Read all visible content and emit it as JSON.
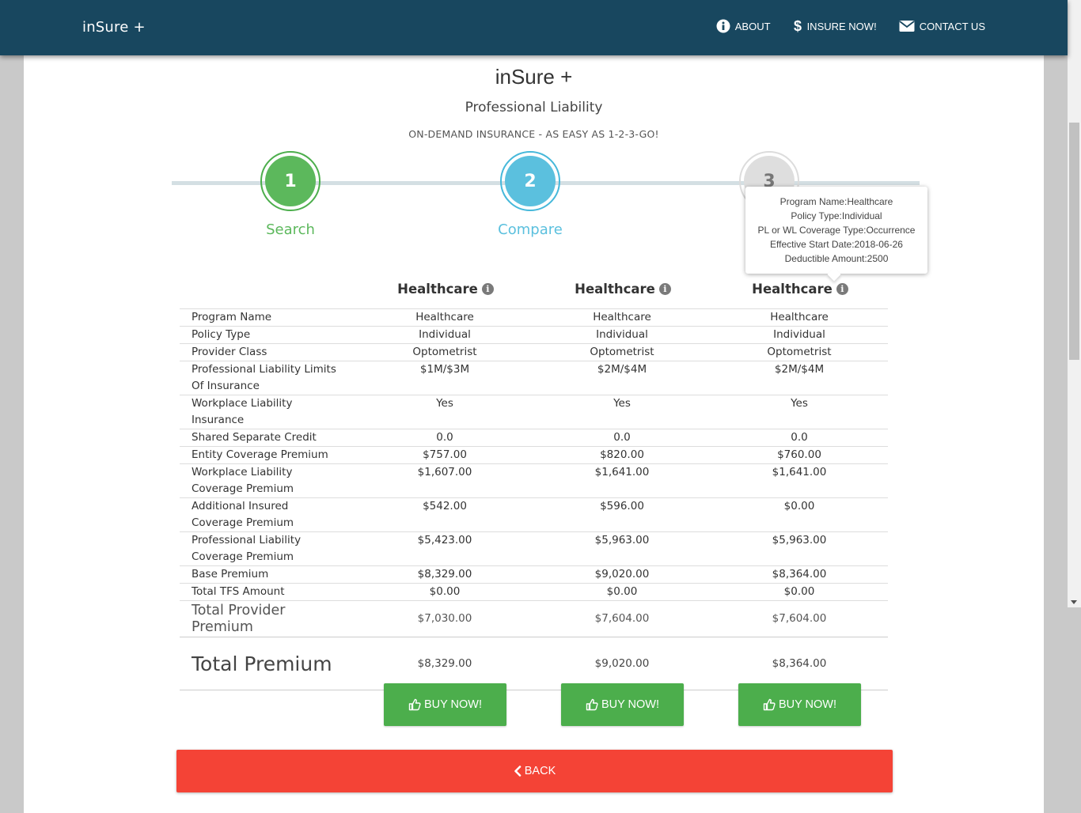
{
  "nav": {
    "brand": "inSure +",
    "links": [
      {
        "label": "ABOUT",
        "icon": "info-circle-icon"
      },
      {
        "label": "INSURE NOW!",
        "icon": "dollar-icon"
      },
      {
        "label": "CONTACT US",
        "icon": "envelope-icon"
      }
    ]
  },
  "header": {
    "title": "inSure +",
    "subtitle": "Professional Liability",
    "tagline": "ON-DEMAND INSURANCE - AS EASY AS 1-2-3-GO!"
  },
  "steps": [
    {
      "number": "1",
      "label": "Search",
      "color": "#5cb85c"
    },
    {
      "number": "2",
      "label": "Compare",
      "color": "#5bc0de"
    },
    {
      "number": "3",
      "label": "",
      "color": "#dedede"
    }
  ],
  "tooltip": {
    "lines": [
      "Program Name:Healthcare",
      "Policy Type:Individual",
      "PL or WL Coverage Type:Occurrence",
      "Effective Start Date:2018-06-26",
      "Deductible Amount:2500"
    ]
  },
  "columns": [
    "Healthcare",
    "Healthcare",
    "Healthcare"
  ],
  "rows": [
    {
      "label": "Program Name",
      "values": [
        "Healthcare",
        "Healthcare",
        "Healthcare"
      ]
    },
    {
      "label": "Policy Type",
      "values": [
        "Individual",
        "Individual",
        "Individual"
      ]
    },
    {
      "label": "Provider Class",
      "values": [
        "Optometrist",
        "Optometrist",
        "Optometrist"
      ]
    },
    {
      "label": "Professional Liability Limits Of Insurance",
      "values": [
        "$1M/$3M",
        "$2M/$4M",
        "$2M/$4M"
      ]
    },
    {
      "label": "Workplace Liability Insurance",
      "values": [
        "Yes",
        "Yes",
        "Yes"
      ]
    },
    {
      "label": "Shared Separate Credit",
      "values": [
        "0.0",
        "0.0",
        "0.0"
      ]
    },
    {
      "label": "Entity Coverage Premium",
      "values": [
        "$757.00",
        "$820.00",
        "$760.00"
      ]
    },
    {
      "label": "Workplace Liability Coverage Premium",
      "values": [
        "$1,607.00",
        "$1,641.00",
        "$1,641.00"
      ]
    },
    {
      "label": "Additional Insured Coverage Premium",
      "values": [
        "$542.00",
        "$596.00",
        "$0.00"
      ]
    },
    {
      "label": "Professional Liability Coverage Premium",
      "values": [
        "$5,423.00",
        "$5,963.00",
        "$5,963.00"
      ]
    },
    {
      "label": "Base Premium",
      "values": [
        "$8,329.00",
        "$9,020.00",
        "$8,364.00"
      ]
    },
    {
      "label": "Total TFS Amount",
      "values": [
        "$0.00",
        "$0.00",
        "$0.00"
      ]
    }
  ],
  "provider_total": {
    "label": "Total Provider Premium",
    "values": [
      "$7,030.00",
      "$7,604.00",
      "$7,604.00"
    ]
  },
  "grand_total": {
    "label": "Total Premium",
    "values": [
      "$8,329.00",
      "$9,020.00",
      "$8,364.00"
    ]
  },
  "buttons": {
    "buy": "BUY NOW!",
    "back": "BACK"
  },
  "colors": {
    "navbar": "#18475f",
    "buy": "#4cae4c",
    "back": "#f44336"
  }
}
